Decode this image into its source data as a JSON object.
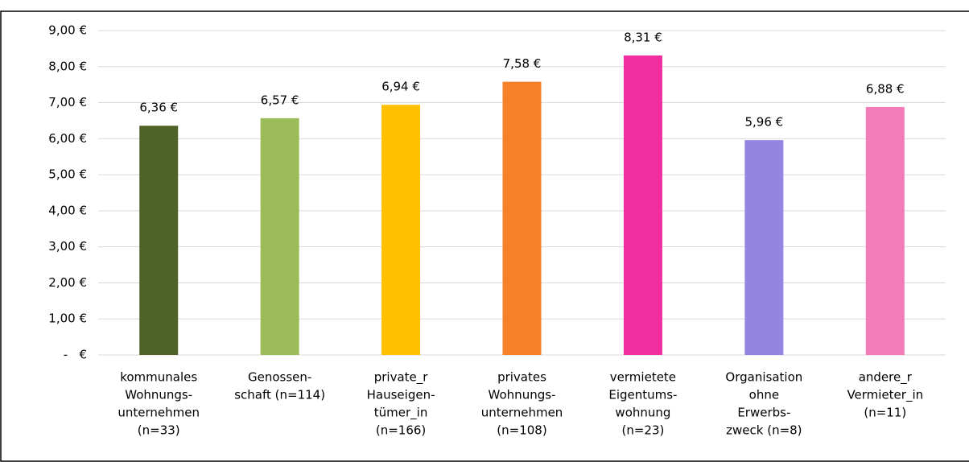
{
  "chart_data": {
    "type": "bar",
    "categories": [
      [
        "kommunales",
        "Wohnungs-",
        "unternehmen",
        "(n=33)"
      ],
      [
        "Genossen-",
        "schaft (n=114)"
      ],
      [
        "private_r",
        "Hauseigen-",
        "tümer_in",
        "(n=166)"
      ],
      [
        "privates",
        "Wohnungs-",
        "unternehmen",
        "(n=108)"
      ],
      [
        "vermietete",
        "Eigentums-",
        "wohnung",
        "(n=23)"
      ],
      [
        "Organisation",
        "ohne",
        "Erwerbs-",
        "zweck (n=8)"
      ],
      [
        "andere_r",
        "Vermieter_in",
        "(n=11)"
      ]
    ],
    "values": [
      6.36,
      6.57,
      6.94,
      7.58,
      8.31,
      5.96,
      6.88
    ],
    "value_labels": [
      "6,36 €",
      "6,57 €",
      "6,94 €",
      "7,58 €",
      "8,31 €",
      "5,96 €",
      "6,88 €"
    ],
    "colors": [
      "#4f6228",
      "#9bbb59",
      "#ffc000",
      "#f78129",
      "#f12e9f",
      "#9485e2",
      "#f47bba"
    ],
    "ylim": [
      0,
      9
    ],
    "yticks": [
      {
        "value": 0,
        "label": "-   €"
      },
      {
        "value": 1,
        "label": "1,00 €"
      },
      {
        "value": 2,
        "label": "2,00 €"
      },
      {
        "value": 3,
        "label": "3,00 €"
      },
      {
        "value": 4,
        "label": "4,00 €"
      },
      {
        "value": 5,
        "label": "5,00 €"
      },
      {
        "value": 6,
        "label": "6,00 €"
      },
      {
        "value": 7,
        "label": "7,00 €"
      },
      {
        "value": 8,
        "label": "8,00 €"
      },
      {
        "value": 9,
        "label": "9,00 €"
      }
    ],
    "grid": true
  }
}
